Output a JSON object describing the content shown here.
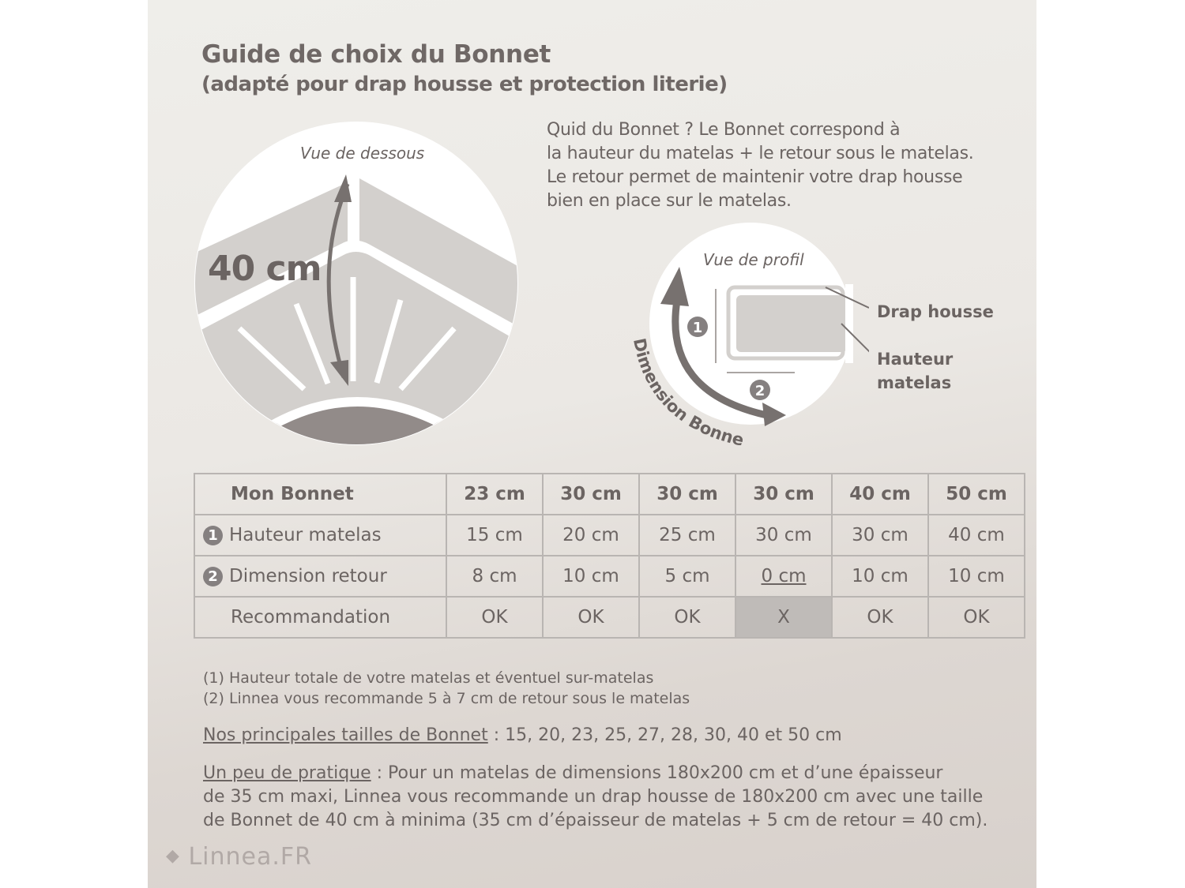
{
  "title": "Guide de choix du Bonnet",
  "subtitle": "(adapté pour drap housse et protection literie)",
  "intro_lines": [
    "Quid du Bonnet ? Le Bonnet correspond à",
    "la hauteur du matelas + le retour sous le matelas.",
    "Le retour permet de maintenir votre drap housse",
    "bien en place sur le matelas."
  ],
  "bottom_view": {
    "caption": "Vue de dessous",
    "measure": "40 cm"
  },
  "profile_view": {
    "caption": "Vue de profil",
    "marker_1": "1",
    "marker_2": "2",
    "curved_label": "Dimension Bonnet",
    "label_drap": "Drap housse",
    "label_hauteur_1": "Hauteur",
    "label_hauteur_2": "matelas"
  },
  "table": {
    "header": {
      "label": "Mon Bonnet",
      "values": [
        "23 cm",
        "30 cm",
        "30 cm",
        "30 cm",
        "40 cm",
        "50 cm"
      ]
    },
    "rows": [
      {
        "num": "1",
        "label": "Hauteur matelas",
        "values": [
          "15 cm",
          "20 cm",
          "25 cm",
          "30 cm",
          "30 cm",
          "40 cm"
        ]
      },
      {
        "num": "2",
        "label": "Dimension retour",
        "values": [
          "8 cm",
          "10 cm",
          "5 cm",
          "0 cm",
          "10 cm",
          "10 cm"
        ]
      },
      {
        "num": "",
        "label": "Recommandation",
        "values": [
          "OK",
          "OK",
          "OK",
          "X",
          "OK",
          "OK"
        ]
      }
    ]
  },
  "notes": [
    "(1) Hauteur totale de votre matelas et éventuel sur-matelas",
    "(2) Linnea vous recommande 5 à 7 cm de retour sous le matelas"
  ],
  "sizes": {
    "label": "Nos principales tailles de Bonnet",
    "text": " : 15, 20, 23, 25, 27, 28, 30, 40 et 50 cm"
  },
  "practice": {
    "label": "Un peu de pratique",
    "line1": " : Pour un matelas de dimensions 180x200 cm et d’une épaisseur",
    "line2": "de 35 cm maxi, Linnea vous recommande un drap housse de 180x200 cm avec une taille",
    "line3": "de Bonnet de 40 cm à minima (35 cm d’épaisseur de matelas + 5 cm de retour = 40 cm)."
  },
  "logo": "Linnea.FR",
  "colors": {
    "text": "#6b6462",
    "grey_fill": "#d3d0cd",
    "dark_fill": "#928b89",
    "x_cell": "#bfbbb8"
  }
}
